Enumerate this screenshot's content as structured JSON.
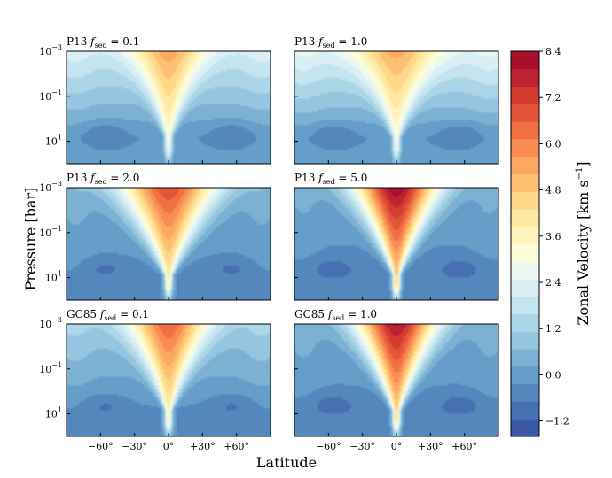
{
  "chart_data": {
    "type": "heatmap",
    "subtype": "filled-contour",
    "xlabel": "Latitude",
    "ylabel": "Pressure [bar]",
    "x_ticks": [
      "−60°",
      "−30°",
      "0°",
      "+30°",
      "+60°"
    ],
    "x_tick_values": [
      -60,
      -30,
      0,
      30,
      60
    ],
    "xlim": [
      -90,
      90
    ],
    "y_scale": "log",
    "y_ticks": [
      "10",
      "10",
      "10"
    ],
    "y_tick_exponents": [
      "−3",
      "−1",
      "1"
    ],
    "ylim": [
      100,
      0.001
    ],
    "colorbar": {
      "label": "Zonal Velocity [km s",
      "label_exponent": "−1",
      "label_close": "]",
      "vmin": -1.6,
      "vmax": 8.4,
      "level_step": 0.4,
      "tick_labels": [
        "8.4",
        "7.2",
        "6.0",
        "4.8",
        "3.6",
        "2.4",
        "1.2",
        "0.0",
        "−1.2"
      ],
      "tick_values": [
        8.4,
        7.2,
        6.0,
        4.8,
        3.6,
        2.4,
        1.2,
        0.0,
        -1.2
      ],
      "colors": [
        "#3b58a6",
        "#4670b2",
        "#5488bd",
        "#659ec9",
        "#7db1d4",
        "#95c5df",
        "#acd6e8",
        "#c4e4ef",
        "#daeff5",
        "#ecf8f2",
        "#fbfcd9",
        "#fff4be",
        "#fee8a2",
        "#fed789",
        "#fdc072",
        "#fca762",
        "#f88c51",
        "#f06f43",
        "#e3553a",
        "#d43c31",
        "#bd2230",
        "#a7102a"
      ]
    },
    "panels": [
      {
        "title": "P13",
        "fsed_label": "sed",
        "fsed_value": "0.1",
        "jet_peak": 5.5,
        "jet_width_top": 22,
        "bg_top": 2.0,
        "bg_bottom": -0.2,
        "vortex_min": -0.7
      },
      {
        "title": "P13",
        "fsed_label": "sed",
        "fsed_value": "1.0",
        "jet_peak": 5.4,
        "jet_width_top": 25,
        "bg_top": 2.3,
        "bg_bottom": -0.2,
        "vortex_min": -0.7
      },
      {
        "title": "P13",
        "fsed_label": "sed",
        "fsed_value": "2.0",
        "jet_peak": 7.0,
        "jet_width_top": 30,
        "bg_top": 0.2,
        "bg_bottom": -0.3,
        "vortex_min": -0.8
      },
      {
        "title": "P13",
        "fsed_label": "sed",
        "fsed_value": "5.0",
        "jet_peak": 8.3,
        "jet_width_top": 26,
        "bg_top": 0.1,
        "bg_bottom": -0.4,
        "vortex_min": -1.0
      },
      {
        "title": "GC85",
        "fsed_label": "sed",
        "fsed_value": "0.1",
        "jet_peak": 6.6,
        "jet_width_top": 24,
        "bg_top": 1.0,
        "bg_bottom": -0.3,
        "vortex_min": -0.8
      },
      {
        "title": "GC85",
        "fsed_label": "sed",
        "fsed_value": "1.0",
        "jet_peak": 8.0,
        "jet_width_top": 25,
        "bg_top": 0.2,
        "bg_bottom": -0.4,
        "vortex_min": -1.0
      }
    ]
  }
}
